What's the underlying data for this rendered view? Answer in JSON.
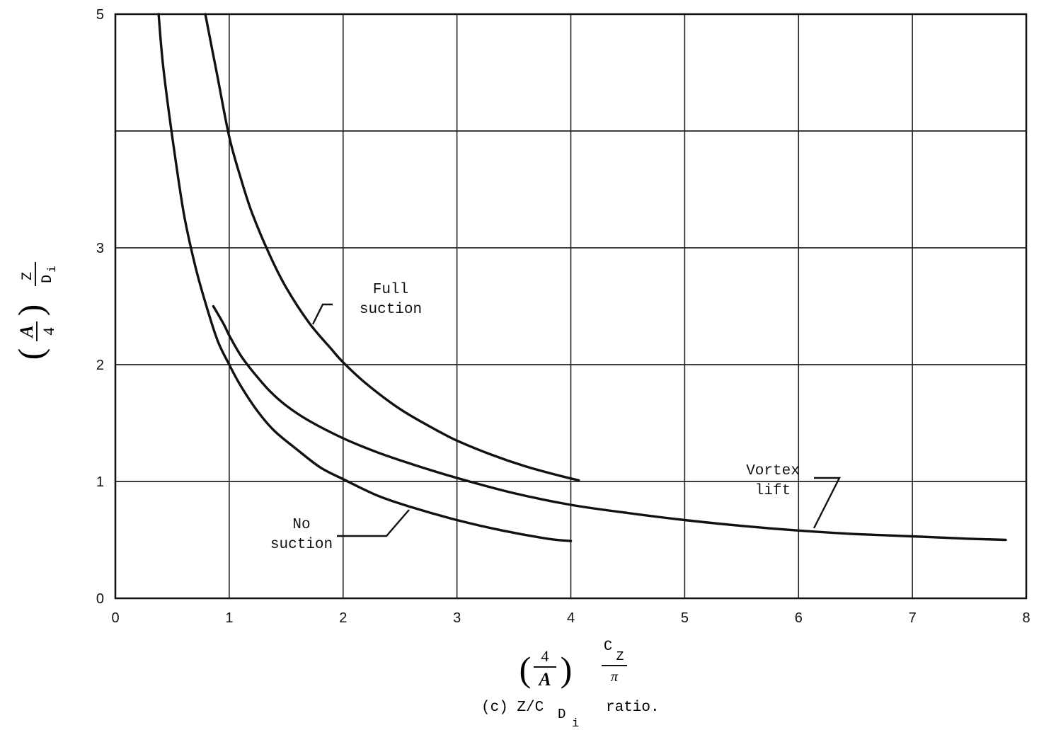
{
  "chart_data": {
    "type": "line",
    "title": "",
    "caption": {
      "prefix": "(c) Z/C",
      "sub": "D",
      "subsub": "i",
      "suffix": "ratio."
    },
    "xlabel": {
      "factor_num": "4",
      "factor_den": "A",
      "main_num": "C",
      "main_num_sub": "Z",
      "main_den": "π"
    },
    "ylabel": {
      "factor_num": "A",
      "factor_den": "4",
      "main_num": "Z",
      "main_den": "D",
      "main_den_sub": "i"
    },
    "xlim": [
      0,
      8
    ],
    "ylim": [
      0,
      5
    ],
    "xticks": [
      0,
      1,
      2,
      3,
      4,
      5,
      6,
      7,
      8
    ],
    "yticks": [
      0,
      1,
      2,
      3,
      4,
      5
    ],
    "xtick_labels": [
      "0",
      "1",
      "2",
      "3",
      "4",
      "5",
      "6",
      "7",
      "8"
    ],
    "ytick_labels": [
      "0",
      "1",
      "2",
      "3",
      "",
      "5"
    ],
    "grid": true,
    "legend": "none",
    "series": [
      {
        "name": "Full suction",
        "x": [
          0.79,
          0.85,
          0.9,
          1.0,
          1.1,
          1.2,
          1.35,
          1.5,
          1.7,
          1.9,
          2.0,
          2.2,
          2.5,
          2.8,
          3.0,
          3.3,
          3.6,
          3.9,
          4.07
        ],
        "y": [
          5.0,
          4.7,
          4.45,
          3.95,
          3.6,
          3.3,
          2.95,
          2.66,
          2.36,
          2.13,
          2.02,
          1.84,
          1.62,
          1.45,
          1.35,
          1.23,
          1.13,
          1.05,
          1.01
        ]
      },
      {
        "name": "Vortex lift",
        "x": [
          0.86,
          0.95,
          1.0,
          1.1,
          1.2,
          1.35,
          1.5,
          1.7,
          2.0,
          2.3,
          2.6,
          3.0,
          3.5,
          4.0,
          4.5,
          5.0,
          5.5,
          6.0,
          6.5,
          7.0,
          7.5,
          7.82
        ],
        "y": [
          2.5,
          2.35,
          2.25,
          2.08,
          1.95,
          1.78,
          1.65,
          1.52,
          1.37,
          1.25,
          1.15,
          1.03,
          0.9,
          0.8,
          0.73,
          0.67,
          0.62,
          0.58,
          0.55,
          0.53,
          0.51,
          0.5
        ]
      },
      {
        "name": "No suction",
        "x": [
          0.38,
          0.42,
          0.5,
          0.6,
          0.7,
          0.8,
          0.9,
          1.0,
          1.1,
          1.25,
          1.4,
          1.6,
          1.8,
          2.0,
          2.3,
          2.6,
          3.0,
          3.4,
          3.8,
          4.0
        ],
        "y": [
          5.0,
          4.55,
          3.95,
          3.3,
          2.85,
          2.5,
          2.2,
          2.0,
          1.82,
          1.6,
          1.43,
          1.27,
          1.12,
          1.02,
          0.88,
          0.78,
          0.67,
          0.58,
          0.51,
          0.49
        ]
      }
    ],
    "annotations": [
      {
        "lines": [
          "Full",
          "suction"
        ],
        "series": "Full suction"
      },
      {
        "lines": [
          "Vortex",
          "lift"
        ],
        "series": "Vortex lift"
      },
      {
        "lines": [
          "No",
          "suction"
        ],
        "series": "No suction"
      }
    ]
  }
}
